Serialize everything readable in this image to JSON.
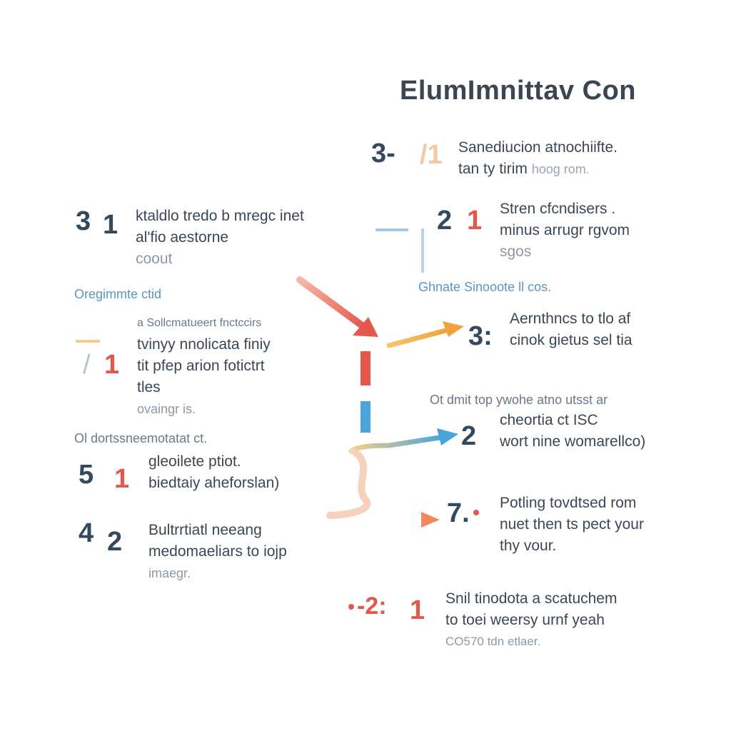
{
  "title": "ElumImnittav Con",
  "colors": {
    "red": "#e4574c",
    "orange": "#f1a23a",
    "blue": "#4aa3d9",
    "dark": "#35495e"
  },
  "left": {
    "step1": {
      "num_a": "3",
      "num_b": "1",
      "line1": "ktaldlo tredo b mregc inet",
      "line2": "al'fio aestorne",
      "line3": "coout"
    },
    "label1": "Oregimmte ctid",
    "step2": {
      "num_a": "/",
      "num_b": "1",
      "line0": "a Sollcmatueert fnctccirs",
      "line1": "tvinyy nnolicata finiy",
      "line2": "tit pfep arion fotictrt",
      "line3": "tles",
      "line4": "ovaingr is."
    },
    "label2": "Ol dortssneemotatat ct.",
    "step3": {
      "num_a": "5",
      "num_b": "1",
      "line1": "gleoilete ptiot.",
      "line2": "biedtaiy aheforslan)"
    },
    "step4": {
      "num_a": "4",
      "num_b": "2",
      "line1": "Bultrrtiatl neeang",
      "line2": "medomaeliars to iojp",
      "line3": "imaegr."
    }
  },
  "right": {
    "step1": {
      "num_a": "3-",
      "num_b": "/1",
      "line1": "Sanediucion atnochiifte.",
      "line2": "tan ty tirim",
      "line2_muted": "hoog rom."
    },
    "step2": {
      "num_a": "2",
      "num_b": "1",
      "line1": "Stren cfcndisers .",
      "line2": "minus arrugr rgvom",
      "line3": "sgos"
    },
    "label1": "Ghnate Sinooote ll cos.",
    "step3": {
      "num_a": "3:",
      "line1": "Aernthncs to tlo af",
      "line2": "cinok gietus sel tia"
    },
    "label2": "Ot dmit top ywohe atno utsst ar",
    "step4": {
      "num_a": "2",
      "line1": "cheortia ct ISC",
      "line2": "wort nine womarellco)"
    },
    "step5": {
      "num_a": "7.",
      "line1": "Potling tovdtsed rom",
      "line2": "nuet then ts pect your",
      "line3": "thy vour."
    },
    "step6": {
      "num_a": "-2:",
      "num_b": "1",
      "line1": "Snil tinodota a scatuchem",
      "line2": "to toei weersy urnf yeah",
      "line3": "CO570 tdn etlaer."
    }
  }
}
